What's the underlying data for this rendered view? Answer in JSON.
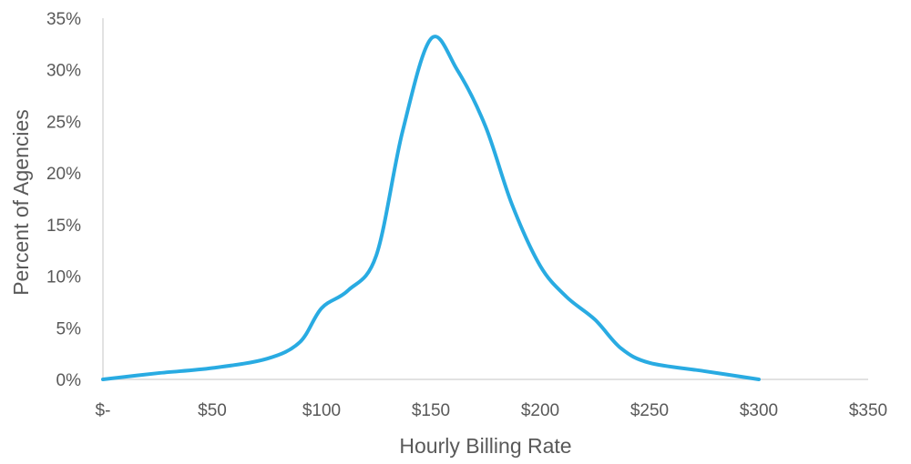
{
  "chart_data": {
    "type": "line",
    "title": "",
    "xlabel": "Hourly Billing Rate",
    "ylabel": "Percent of Agencies",
    "xlim": [
      0,
      350
    ],
    "ylim": [
      0,
      35
    ],
    "grid": false,
    "legend": "none",
    "x_ticks": [
      {
        "value": 0,
        "label": "$-"
      },
      {
        "value": 50,
        "label": "$50"
      },
      {
        "value": 100,
        "label": "$100"
      },
      {
        "value": 150,
        "label": "$150"
      },
      {
        "value": 200,
        "label": "$200"
      },
      {
        "value": 250,
        "label": "$250"
      },
      {
        "value": 300,
        "label": "$300"
      },
      {
        "value": 350,
        "label": "$350"
      }
    ],
    "y_ticks": [
      {
        "value": 0,
        "label": "0%"
      },
      {
        "value": 5,
        "label": "5%"
      },
      {
        "value": 10,
        "label": "10%"
      },
      {
        "value": 15,
        "label": "15%"
      },
      {
        "value": 20,
        "label": "20%"
      },
      {
        "value": 25,
        "label": "25%"
      },
      {
        "value": 30,
        "label": "30%"
      },
      {
        "value": 35,
        "label": "35%"
      }
    ],
    "series": [
      {
        "color": "#29abe2",
        "x": [
          0,
          25,
          50,
          75,
          90,
          100,
          112,
          125,
          137,
          150,
          162,
          175,
          187,
          200,
          212,
          225,
          237,
          250,
          275,
          300
        ],
        "y": [
          0,
          0.6,
          1.1,
          2.0,
          3.6,
          6.9,
          8.6,
          12.0,
          24.0,
          33.0,
          30.0,
          24.5,
          17.0,
          11.0,
          8.0,
          5.8,
          3.0,
          1.6,
          0.8,
          0
        ]
      }
    ]
  }
}
